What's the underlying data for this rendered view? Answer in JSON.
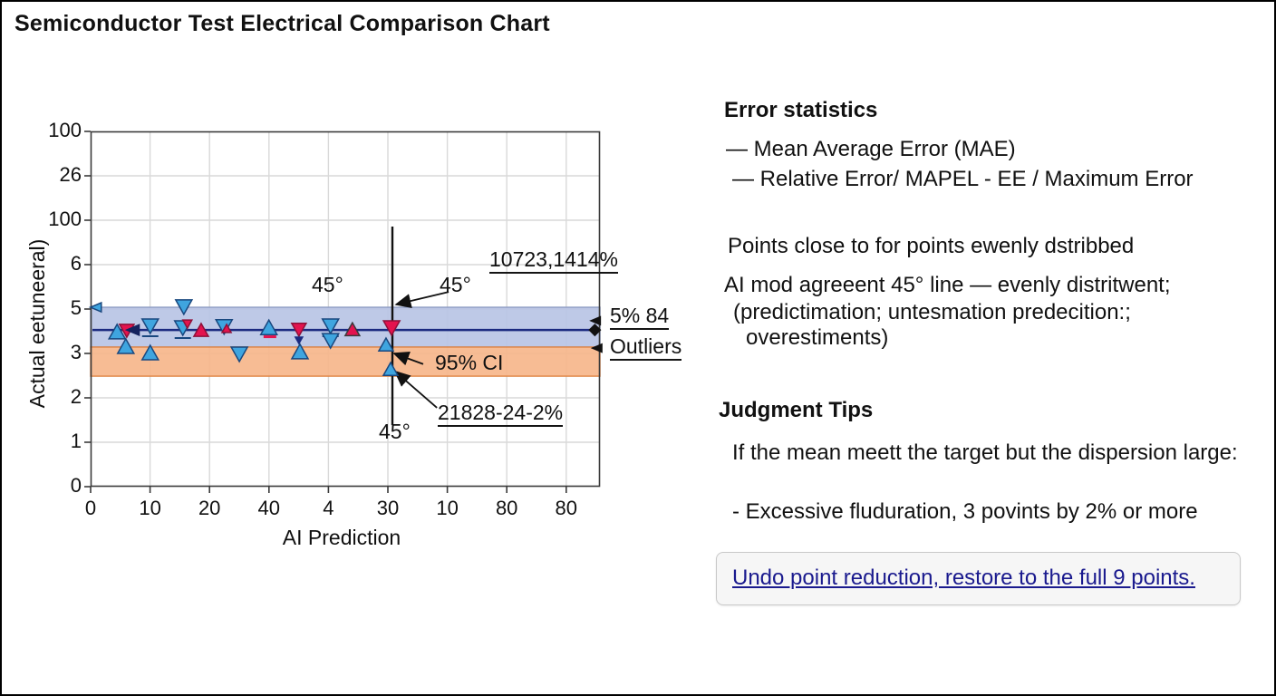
{
  "title": "Semiconductor Test Electrical Comparison Chart",
  "chart_data": {
    "type": "scatter",
    "x_axis_label": "AI Prediction",
    "y_axis_label": "Actual eetuneeral)",
    "x_ticks": [
      "0",
      "10",
      "20",
      "40",
      "4",
      "30",
      "10",
      "80",
      "80"
    ],
    "y_ticks": [
      "100",
      "26",
      "100",
      "6",
      "5",
      "3",
      "2",
      "1",
      "0"
    ],
    "grid": true,
    "colors": {
      "blue_band_fill": "#b7c3e4",
      "blue_band_stroke": "#8e9cc4",
      "orange_band_fill": "#f6b588",
      "orange_band_stroke": "#e08443",
      "mean_line": "#1b2a80",
      "blue_marker": "#3fa5df",
      "blue_marker_stroke": "#19477e",
      "red_marker": "#e3134e",
      "red_marker_stroke": "#8e1038",
      "grid_line": "#d9d9d9",
      "spine": "#3a3a3a",
      "annotation": "#111111"
    },
    "bands": [
      {
        "name": "ci-band-blue",
        "fy_top": 0.495,
        "fy_bottom": 0.607,
        "fill": "#b7c3e4",
        "stroke": "#8e9cc4"
      },
      {
        "name": "ci-band-orange",
        "fy_top": 0.607,
        "fy_bottom": 0.689,
        "fill": "#f6b588",
        "stroke": "#e08443"
      }
    ],
    "mean_line": {
      "fy": 0.559,
      "color": "#1b2a80"
    },
    "vertical_line": {
      "fx": 0.5925,
      "fy_top": 0.268,
      "fy_bottom": 0.827,
      "color": "#111111"
    },
    "points": [
      {
        "fx": 0.012,
        "fy": 0.495,
        "shape": "left",
        "color": "#3fa5df",
        "stroke": "#19477e",
        "size": 7
      },
      {
        "fx": 0.052,
        "fy": 0.566,
        "shape": "up",
        "color": "#3fa5df",
        "stroke": "#19477e",
        "size": 9
      },
      {
        "fx": 0.071,
        "fy": 0.559,
        "shape": "down",
        "color": "#e3134e",
        "stroke": "#8e1038",
        "size": 8
      },
      {
        "fx": 0.069,
        "fy": 0.607,
        "shape": "up",
        "color": "#3fa5df",
        "stroke": "#19477e",
        "size": 9
      },
      {
        "fx": 0.117,
        "fy": 0.546,
        "shape": "downbar",
        "color": "#3fa5df",
        "stroke": "#19477e",
        "size": 9
      },
      {
        "fx": 0.117,
        "fy": 0.625,
        "shape": "up",
        "color": "#3fa5df",
        "stroke": "#19477e",
        "size": 9
      },
      {
        "fx": 0.183,
        "fy": 0.492,
        "shape": "down",
        "color": "#3fa5df",
        "stroke": "#19477e",
        "size": 9
      },
      {
        "fx": 0.181,
        "fy": 0.551,
        "shape": "downbar",
        "color": "#3fa5df",
        "stroke": "#19477e",
        "size": 9
      },
      {
        "fx": 0.19,
        "fy": 0.541,
        "shape": "down",
        "color": "#e3134e",
        "stroke": "#8e1038",
        "size": 5
      },
      {
        "fx": 0.217,
        "fy": 0.561,
        "shape": "up",
        "color": "#e3134e",
        "stroke": "#8e1038",
        "size": 8
      },
      {
        "fx": 0.262,
        "fy": 0.548,
        "shape": "down",
        "color": "#3fa5df",
        "stroke": "#19477e",
        "size": 9
      },
      {
        "fx": 0.267,
        "fy": 0.556,
        "shape": "up",
        "color": "#e3134e",
        "stroke": "#8e1038",
        "size": 5
      },
      {
        "fx": 0.292,
        "fy": 0.625,
        "shape": "down",
        "color": "#3fa5df",
        "stroke": "#19477e",
        "size": 9
      },
      {
        "fx": 0.35,
        "fy": 0.554,
        "shape": "up",
        "color": "#3fa5df",
        "stroke": "#19477e",
        "size": 9
      },
      {
        "fx": 0.352,
        "fy": 0.578,
        "shape": "dash",
        "color": "#e3134e",
        "stroke": "#e3134e",
        "size": 7
      },
      {
        "fx": 0.409,
        "fy": 0.556,
        "shape": "down",
        "color": "#e3134e",
        "stroke": "#8e1038",
        "size": 8
      },
      {
        "fx": 0.409,
        "fy": 0.587,
        "shape": "down",
        "color": "#1b2a80",
        "stroke": "#1b2a80",
        "size": 4
      },
      {
        "fx": 0.411,
        "fy": 0.622,
        "shape": "up",
        "color": "#3fa5df",
        "stroke": "#19477e",
        "size": 9
      },
      {
        "fx": 0.471,
        "fy": 0.546,
        "shape": "downbar",
        "color": "#3fa5df",
        "stroke": "#19477e",
        "size": 9
      },
      {
        "fx": 0.471,
        "fy": 0.587,
        "shape": "down",
        "color": "#3fa5df",
        "stroke": "#19477e",
        "size": 9
      },
      {
        "fx": 0.514,
        "fy": 0.559,
        "shape": "up",
        "color": "#e3134e",
        "stroke": "#3a3a3a",
        "size": 8
      },
      {
        "fx": 0.591,
        "fy": 0.551,
        "shape": "down",
        "color": "#e3134e",
        "stroke": "#8e1038",
        "size": 9
      },
      {
        "fx": 0.58,
        "fy": 0.602,
        "shape": "up",
        "color": "#3fa5df",
        "stroke": "#19477e",
        "size": 8
      },
      {
        "fx": 0.589,
        "fy": 0.671,
        "shape": "up",
        "color": "#3fa5df",
        "stroke": "#19477e",
        "size": 8
      },
      {
        "fx": 0.085,
        "fy": 0.559,
        "shape": "left",
        "color": "#15235e",
        "stroke": "#15235e",
        "size": 8
      },
      {
        "fx": 0.993,
        "fy": 0.533,
        "shape": "left",
        "color": "#111111",
        "stroke": "#111111",
        "size": 6
      },
      {
        "fx": 0.99,
        "fy": 0.559,
        "shape": "diamond",
        "color": "#111111",
        "stroke": "#111111",
        "size": 6
      },
      {
        "fx": 0.996,
        "fy": 0.61,
        "shape": "left",
        "color": "#111111",
        "stroke": "#111111",
        "size": 6
      }
    ],
    "arrows": [
      {
        "x1": 0.703,
        "y1": 0.452,
        "x2": 0.6,
        "y2": 0.487
      },
      {
        "x1": 0.653,
        "y1": 0.655,
        "x2": 0.596,
        "y2": 0.625
      },
      {
        "x1": 0.68,
        "y1": 0.778,
        "x2": 0.598,
        "y2": 0.676
      }
    ],
    "annotations": {
      "deg45_left": "45°",
      "deg45_mid": "45°",
      "big_pct": "10723,1414%",
      "pct5_84": "5% 84",
      "outliers": "Outliers",
      "ci95": "95% CI",
      "code_pct": "21828-24-2%",
      "deg45_bottom": "45°"
    }
  },
  "panel": {
    "error_stats": {
      "heading": "Error statistics",
      "items": [
        "— Mean Average Error (MAE)",
        "— Relative Error/ MAPEL - EE / Maximum Error"
      ]
    },
    "notes": {
      "line1": "Points close to for points ewenly dstribbed",
      "line2": "AI mod agreeent 45° line — evenly distritwent;",
      "line3": "(predictimation; untesmation predecition:;",
      "line4": "overestiments)"
    },
    "judgment": {
      "heading": "Judgment Tips",
      "line1": "If the mean meett the target but the dispersion large:",
      "line2": "- Excessive fluduration, 3 povints by 2% or more"
    },
    "link": {
      "label": "Undo point reduction, restore to the full 9 points."
    }
  }
}
